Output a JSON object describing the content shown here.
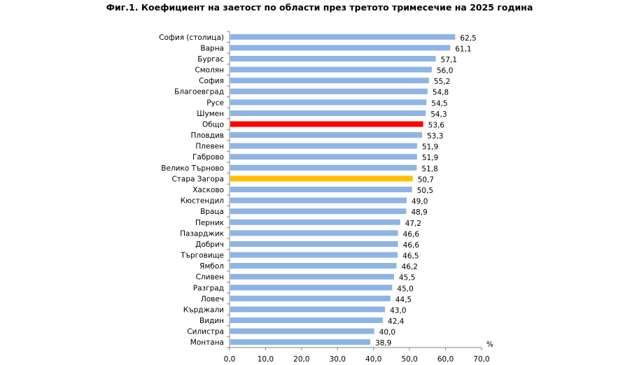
{
  "chart_data": {
    "type": "bar",
    "orientation": "horizontal",
    "title": "Фиг.1. Коефициент на заетост по области през третото тримесечие на 2025 година",
    "xlabel": "%",
    "ylabel": "",
    "xlim": [
      0,
      70
    ],
    "xticks": [
      "0,0",
      "10,0",
      "20,0",
      "30,0",
      "40,0",
      "50,0",
      "60,0",
      "70,0"
    ],
    "grid": false,
    "categories": [
      "София (столица)",
      "Варна",
      "Бургас",
      "Смолян",
      "София",
      "Благоевград",
      "Русе",
      "Шумен",
      "Общо",
      "Пловдив",
      "Плевен",
      "Габрово",
      "Велико Търново",
      "Стара Загора",
      "Хасково",
      "Кюстендил",
      "Враца",
      "Перник",
      "Пазарджик",
      "Добрич",
      "Търговище",
      "Ямбол",
      "Сливен",
      "Разград",
      "Ловеч",
      "Кърджали",
      "Видин",
      "Силистра",
      "Монтана"
    ],
    "values": [
      62.5,
      61.1,
      57.1,
      56.0,
      55.2,
      54.8,
      54.5,
      54.3,
      53.6,
      53.3,
      51.9,
      51.9,
      51.8,
      50.7,
      50.5,
      49.0,
      48.9,
      47.2,
      46.6,
      46.6,
      46.5,
      46.2,
      45.5,
      45.0,
      44.5,
      43.0,
      42.4,
      40.0,
      38.9
    ],
    "value_labels": [
      "62,5",
      "61,1",
      "57,1",
      "56,0",
      "55,2",
      "54,8",
      "54,5",
      "54,3",
      "53,6",
      "53,3",
      "51,9",
      "51,9",
      "51,8",
      "50,7",
      "50,5",
      "49,0",
      "48,9",
      "47,2",
      "46,6",
      "46,6",
      "46,5",
      "46,2",
      "45,5",
      "45,0",
      "44,5",
      "43,0",
      "42,4",
      "40,0",
      "38,9"
    ],
    "colors": {
      "default": "#8EB4E3",
      "Общо": "#FF0000",
      "Стара Загора": "#FFC000"
    }
  }
}
